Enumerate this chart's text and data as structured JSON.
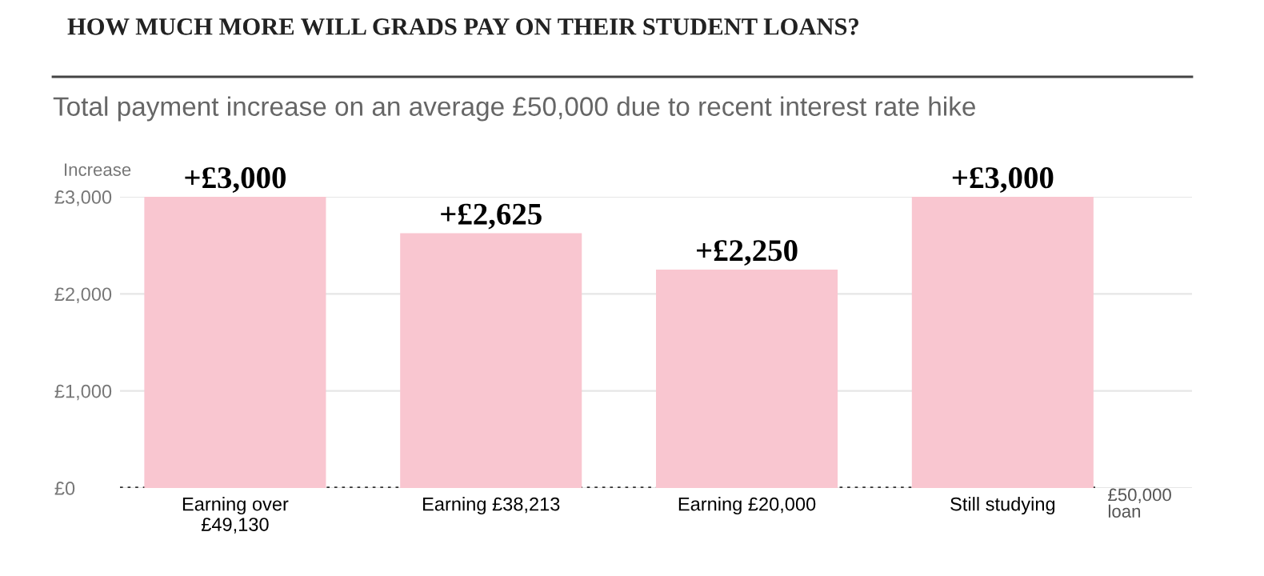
{
  "chart_data": {
    "type": "bar",
    "title": "HOW MUCH MORE WILL GRADS PAY ON THEIR STUDENT LOANS?",
    "subtitle": "Total payment increase on an average £50,000 due to recent interest rate hike",
    "ylabel": "Increase",
    "categories": [
      "Earning over\n£49,130",
      "Earning £38,213",
      "Earning £20,000",
      "Still studying"
    ],
    "values": [
      3000,
      2625,
      2250,
      3000
    ],
    "value_labels": [
      "+£3,000",
      "+£2,625",
      "+£2,250",
      "+£3,000"
    ],
    "color": "#f9c6d0",
    "ylim": [
      0,
      3000
    ],
    "yticks": [
      {
        "value": 0,
        "label": "£0"
      },
      {
        "value": 1000,
        "label": "£1,000"
      },
      {
        "value": 2000,
        "label": "£2,000"
      },
      {
        "value": 3000,
        "label": "£3,000"
      }
    ],
    "grid": "y",
    "ref_lines": [
      {
        "axis": "y",
        "value": 0,
        "label": "£50,000\nloan",
        "color": "#333333",
        "line_style": "dotted"
      }
    ]
  }
}
